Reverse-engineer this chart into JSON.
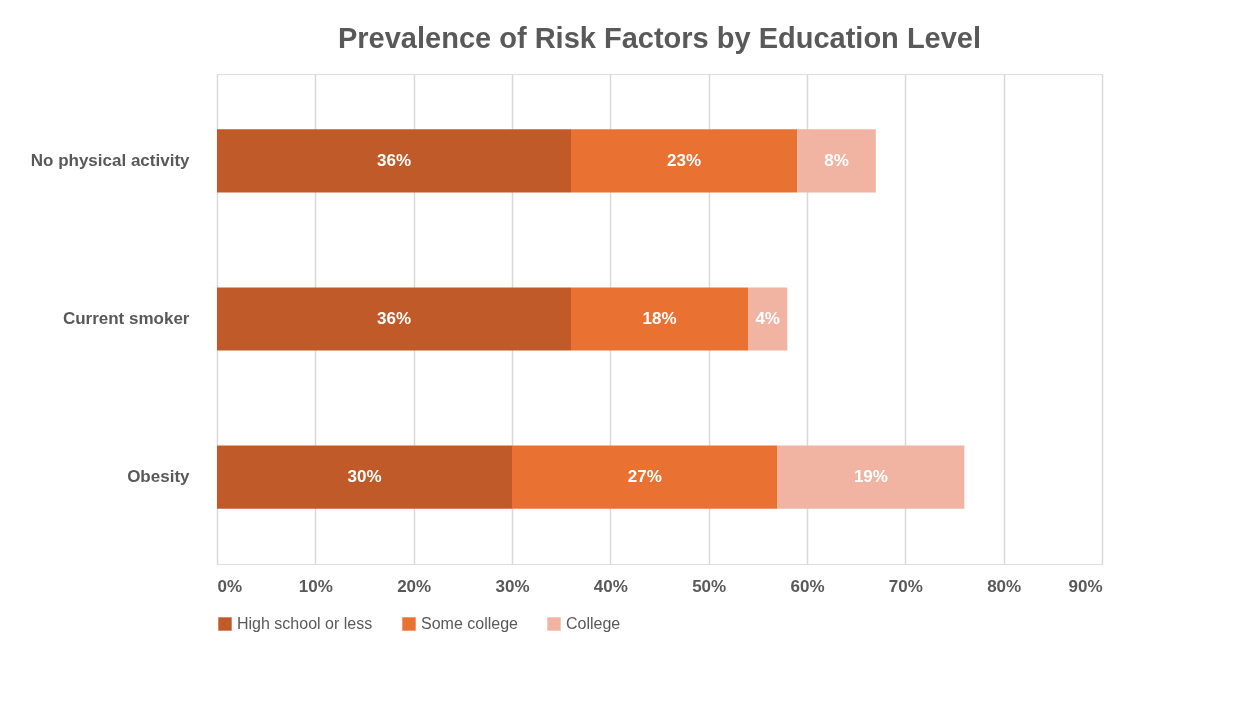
{
  "chart_data": {
    "type": "bar",
    "title": "Prevalence of Risk Factors by Education Level",
    "orientation": "horizontal",
    "stacked": true,
    "categories": [
      "No physical activity",
      "Current smoker",
      "Obesity"
    ],
    "series": [
      {
        "name": "High school or less",
        "color": "#c05a28",
        "values": [
          36,
          36,
          30
        ],
        "value_labels": [
          "36%",
          "36%",
          "30%"
        ]
      },
      {
        "name": "Some college",
        "color": "#e97132",
        "values": [
          23,
          18,
          27
        ],
        "value_labels": [
          "23%",
          "18%",
          "27%"
        ]
      },
      {
        "name": "College",
        "color": "#f1b4a2",
        "values": [
          8,
          4,
          19
        ],
        "value_labels": [
          "8%",
          "4%",
          "19%"
        ]
      }
    ],
    "xlim": [
      0,
      90
    ],
    "xticks": [
      {
        "value": 0,
        "label": "0%"
      },
      {
        "value": 10,
        "label": "10%"
      },
      {
        "value": 20,
        "label": "20%"
      },
      {
        "value": 30,
        "label": "30%"
      },
      {
        "value": 40,
        "label": "40%"
      },
      {
        "value": 50,
        "label": "50%"
      },
      {
        "value": 60,
        "label": "60%"
      },
      {
        "value": 70,
        "label": "70%"
      },
      {
        "value": 80,
        "label": "80%"
      },
      {
        "value": 90,
        "label": "90%"
      }
    ],
    "grid": "x",
    "legend": "bottom"
  }
}
